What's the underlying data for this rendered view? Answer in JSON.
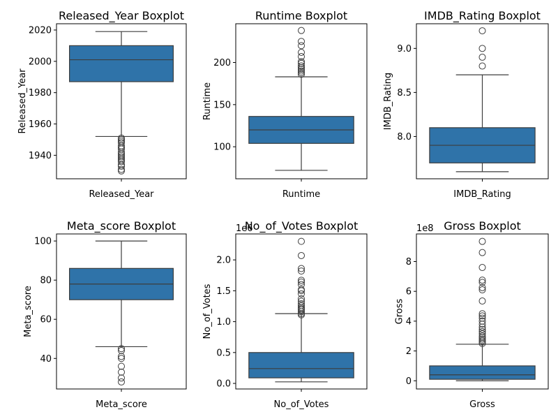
{
  "chart_data": [
    {
      "type": "boxplot",
      "title": "Released_Year Boxplot",
      "xlabel": "Released_Year",
      "ylabel": "Released_Year",
      "offset_text": "",
      "ylim": [
        1925,
        2024
      ],
      "yticks": [
        1940,
        1960,
        1980,
        2000,
        2020
      ],
      "ytick_labels": [
        "1940",
        "1960",
        "1980",
        "2000",
        "2020"
      ],
      "color": "#2f73a9",
      "box": {
        "whisker_low": 1952,
        "q1": 1987,
        "median": 2001,
        "q3": 2010,
        "whisker_high": 2019
      },
      "outliers": [
        1951,
        1950,
        1949,
        1948,
        1946,
        1945,
        1944,
        1942,
        1941,
        1940,
        1939,
        1938,
        1937,
        1936,
        1934,
        1933,
        1931,
        1930
      ]
    },
    {
      "type": "boxplot",
      "title": "Runtime Boxplot",
      "xlabel": "Runtime",
      "ylabel": "Runtime",
      "offset_text": "",
      "ylim": [
        62,
        246
      ],
      "yticks": [
        100,
        150,
        200
      ],
      "ytick_labels": [
        "100",
        "150",
        "200"
      ],
      "color": "#2f73a9",
      "box": {
        "whisker_low": 72,
        "q1": 104,
        "median": 120,
        "q3": 136,
        "whisker_high": 183
      },
      "outliers": [
        186,
        188,
        190,
        192,
        194,
        196,
        199,
        201,
        207,
        212,
        220,
        225,
        238
      ]
    },
    {
      "type": "boxplot",
      "title": "IMDB_Rating Boxplot",
      "xlabel": "IMDB_Rating",
      "ylabel": "IMDB_Rating",
      "offset_text": "",
      "ylim": [
        7.52,
        9.28
      ],
      "yticks": [
        8.0,
        8.5,
        9.0
      ],
      "ytick_labels": [
        "8.0",
        "8.5",
        "9.0"
      ],
      "color": "#2f73a9",
      "box": {
        "whisker_low": 7.6,
        "q1": 7.7,
        "median": 7.9,
        "q3": 8.1,
        "whisker_high": 8.7
      },
      "outliers": [
        8.8,
        8.9,
        9.0,
        9.2
      ]
    },
    {
      "type": "boxplot",
      "title": "Meta_score Boxplot",
      "xlabel": "Meta_score",
      "ylabel": "Meta_score",
      "offset_text": "",
      "ylim": [
        24.4,
        103.6
      ],
      "yticks": [
        40,
        60,
        80,
        100
      ],
      "ytick_labels": [
        "40",
        "60",
        "80",
        "100"
      ],
      "color": "#2f73a9",
      "box": {
        "whisker_low": 46,
        "q1": 70,
        "median": 78,
        "q3": 86,
        "whisker_high": 100
      },
      "outliers": [
        45,
        44,
        41,
        40,
        36,
        33,
        30,
        28
      ]
    },
    {
      "type": "boxplot",
      "title": "No_of_Votes Boxplot",
      "xlabel": "No_of_Votes",
      "ylabel": "No_of_Votes",
      "offset_text": "1e6",
      "ylim": [
        -0.09,
        2.42
      ],
      "yticks": [
        0.0,
        0.5,
        1.0,
        1.5,
        2.0
      ],
      "ytick_labels": [
        "0.0",
        "0.5",
        "1.0",
        "1.5",
        "2.0"
      ],
      "color": "#2f73a9",
      "box": {
        "whisker_low": 0.025,
        "q1": 0.09,
        "median": 0.24,
        "q3": 0.5,
        "whisker_high": 1.13
      },
      "outliers": [
        1.11,
        1.13,
        1.16,
        1.19,
        1.21,
        1.23,
        1.26,
        1.29,
        1.33,
        1.37,
        1.45,
        1.5,
        1.52,
        1.6,
        1.64,
        1.67,
        1.82,
        1.86,
        2.07,
        2.3
      ]
    },
    {
      "type": "boxplot",
      "title": "Gross Boxplot",
      "xlabel": "Gross",
      "ylabel": "Gross",
      "offset_text": "1e8",
      "ylim": [
        -0.55,
        9.85
      ],
      "yticks": [
        0,
        2,
        4,
        6,
        8
      ],
      "ytick_labels": [
        "0",
        "2",
        "4",
        "6",
        "8"
      ],
      "color": "#2f73a9",
      "box": {
        "whisker_low": 0.0,
        "q1": 0.1,
        "median": 0.4,
        "q3": 1.0,
        "whisker_high": 2.45
      },
      "outliers": [
        2.5,
        2.6,
        2.7,
        2.8,
        2.9,
        3.0,
        3.15,
        3.3,
        3.45,
        3.6,
        3.8,
        4.0,
        4.2,
        4.35,
        4.5,
        5.35,
        6.1,
        6.25,
        6.6,
        6.75,
        7.6,
        8.6,
        9.35
      ]
    }
  ]
}
